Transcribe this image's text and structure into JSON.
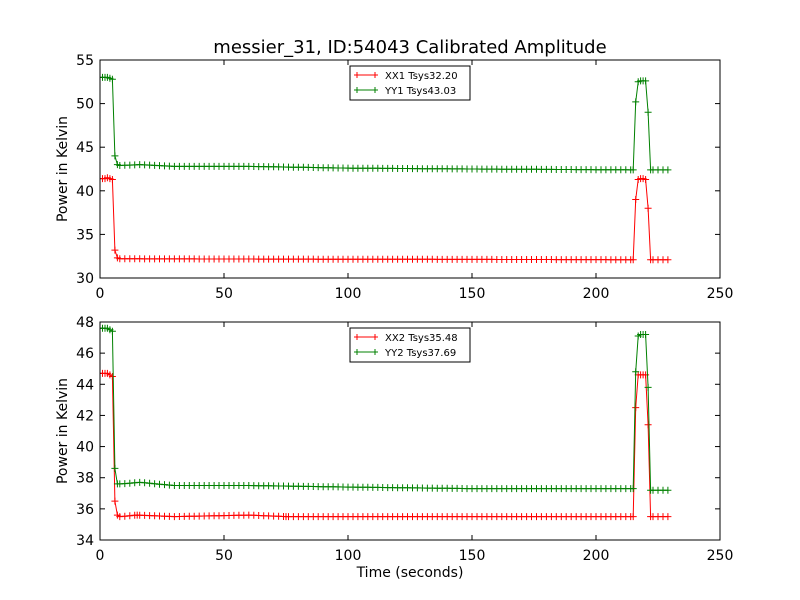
{
  "figure": {
    "title": "messier_31, ID:54043 Calibrated Amplitude"
  },
  "chart_data": [
    {
      "type": "line",
      "title": "messier_31, ID:54043 Calibrated Amplitude",
      "xlabel": "",
      "ylabel": "Power in Kelvin",
      "xlim": [
        0,
        250
      ],
      "ylim": [
        30,
        55
      ],
      "xticks": [
        0,
        50,
        100,
        150,
        200,
        250
      ],
      "yticks": [
        30,
        35,
        40,
        45,
        50,
        55
      ],
      "grid": false,
      "legend_position": "top-center",
      "series": [
        {
          "name": "XX1 Tsys32.20",
          "color": "#ff0000",
          "marker": "plus",
          "points": [
            [
              0,
              41.4
            ],
            [
              1,
              41.4
            ],
            [
              2,
              41.4
            ],
            [
              3,
              41.5
            ],
            [
              4,
              41.4
            ],
            [
              5,
              41.3
            ],
            [
              6,
              33.2
            ],
            [
              7,
              32.3
            ],
            [
              8,
              32.2
            ],
            [
              215,
              32.1
            ],
            [
              216,
              39.0
            ],
            [
              217,
              41.3
            ],
            [
              218,
              41.4
            ],
            [
              219,
              41.4
            ],
            [
              220,
              41.3
            ],
            [
              221,
              38.0
            ],
            [
              222,
              32.1
            ],
            [
              223,
              32.1
            ],
            [
              229,
              32.1
            ]
          ],
          "fill_start": 8,
          "fill_end": 215,
          "fill_step": 2,
          "fill_from": 32.2,
          "fill_to": 32.1
        },
        {
          "name": "YY1 Tsys43.03",
          "color": "#008000",
          "marker": "plus",
          "points": [
            [
              0,
              53.0
            ],
            [
              1,
              53.0
            ],
            [
              2,
              53.0
            ],
            [
              3,
              53.0
            ],
            [
              4,
              52.9
            ],
            [
              5,
              52.8
            ],
            [
              6,
              44.0
            ],
            [
              7,
              43.0
            ],
            [
              8,
              42.9
            ],
            [
              16,
              43.0
            ],
            [
              30,
              42.8
            ],
            [
              60,
              42.8
            ],
            [
              100,
              42.6
            ],
            [
              150,
              42.5
            ],
            [
              215,
              42.4
            ],
            [
              216,
              50.2
            ],
            [
              217,
              52.5
            ],
            [
              218,
              52.6
            ],
            [
              219,
              52.6
            ],
            [
              220,
              52.6
            ],
            [
              221,
              49.0
            ],
            [
              222,
              42.4
            ],
            [
              223,
              42.4
            ],
            [
              229,
              42.4
            ]
          ],
          "fill_start": 8,
          "fill_end": 215,
          "fill_step": 2
        }
      ]
    },
    {
      "type": "line",
      "title": "",
      "xlabel": "Time (seconds)",
      "ylabel": "Power in Kelvin",
      "xlim": [
        0,
        250
      ],
      "ylim": [
        34,
        48
      ],
      "xticks": [
        0,
        50,
        100,
        150,
        200,
        250
      ],
      "yticks": [
        34,
        36,
        38,
        40,
        42,
        44,
        46,
        48
      ],
      "grid": false,
      "legend_position": "top-center",
      "series": [
        {
          "name": "XX2 Tsys35.48",
          "color": "#ff0000",
          "marker": "plus",
          "points": [
            [
              0,
              44.7
            ],
            [
              1,
              44.7
            ],
            [
              2,
              44.7
            ],
            [
              3,
              44.7
            ],
            [
              4,
              44.6
            ],
            [
              5,
              44.5
            ],
            [
              6,
              36.5
            ],
            [
              7,
              35.6
            ],
            [
              8,
              35.5
            ],
            [
              15,
              35.6
            ],
            [
              30,
              35.5
            ],
            [
              60,
              35.6
            ],
            [
              75,
              35.5
            ],
            [
              100,
              35.5
            ],
            [
              150,
              35.5
            ],
            [
              215,
              35.5
            ],
            [
              216,
              42.5
            ],
            [
              217,
              44.6
            ],
            [
              218,
              44.6
            ],
            [
              219,
              44.6
            ],
            [
              220,
              44.6
            ],
            [
              221,
              41.4
            ],
            [
              222,
              35.5
            ],
            [
              223,
              35.5
            ],
            [
              229,
              35.5
            ]
          ],
          "fill_start": 8,
          "fill_end": 215,
          "fill_step": 2
        },
        {
          "name": "YY2 Tsys37.69",
          "color": "#008000",
          "marker": "plus",
          "points": [
            [
              0,
              47.6
            ],
            [
              1,
              47.6
            ],
            [
              2,
              47.6
            ],
            [
              3,
              47.6
            ],
            [
              4,
              47.5
            ],
            [
              5,
              47.4
            ],
            [
              6,
              38.6
            ],
            [
              7,
              37.6
            ],
            [
              8,
              37.6
            ],
            [
              16,
              37.7
            ],
            [
              30,
              37.5
            ],
            [
              60,
              37.5
            ],
            [
              100,
              37.4
            ],
            [
              150,
              37.3
            ],
            [
              215,
              37.3
            ],
            [
              216,
              44.8
            ],
            [
              217,
              47.1
            ],
            [
              218,
              47.2
            ],
            [
              219,
              47.2
            ],
            [
              220,
              47.2
            ],
            [
              221,
              43.8
            ],
            [
              222,
              37.2
            ],
            [
              223,
              37.2
            ],
            [
              229,
              37.2
            ]
          ],
          "fill_start": 8,
          "fill_end": 215,
          "fill_step": 2
        }
      ]
    }
  ]
}
